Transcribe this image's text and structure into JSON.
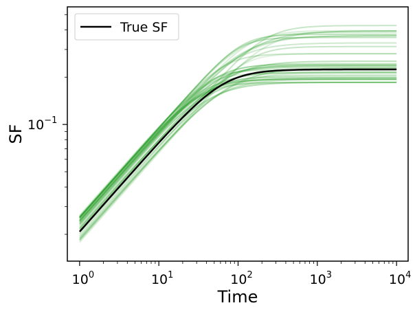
{
  "chart_data": {
    "type": "line",
    "xlabel": "Time",
    "ylabel": "SF",
    "x_scale": "log",
    "y_scale": "log",
    "xlim": [
      0.7,
      14000
    ],
    "ylim": [
      0.0135,
      0.56
    ],
    "x_ticks": [
      {
        "value": 1,
        "base": "10",
        "exp": "0"
      },
      {
        "value": 10,
        "base": "10",
        "exp": "1"
      },
      {
        "value": 100,
        "base": "10",
        "exp": "2"
      },
      {
        "value": 1000,
        "base": "10",
        "exp": "3"
      },
      {
        "value": 10000,
        "base": "10",
        "exp": "4"
      }
    ],
    "y_ticks": [
      {
        "value": 0.1,
        "base": "10",
        "exp": "−1"
      }
    ],
    "grid": false,
    "legend": {
      "position": "top-left",
      "entries": [
        {
          "label": "True SF",
          "color": "#000000"
        }
      ]
    },
    "true_curve": {
      "name": "True SF",
      "color": "#000000",
      "x": [
        1,
        2,
        5,
        10,
        20,
        50,
        100,
        200,
        500,
        1000,
        10000
      ],
      "y": [
        0.0208,
        0.0302,
        0.0515,
        0.078,
        0.118,
        0.176,
        0.208,
        0.22,
        0.224,
        0.224,
        0.224
      ]
    },
    "ensemble": {
      "color": "#2ca02c",
      "description_count": 40,
      "start_min": 0.0178,
      "start_max": 0.0265,
      "plateau_min": 0.185,
      "plateau_max": 0.45
    }
  }
}
